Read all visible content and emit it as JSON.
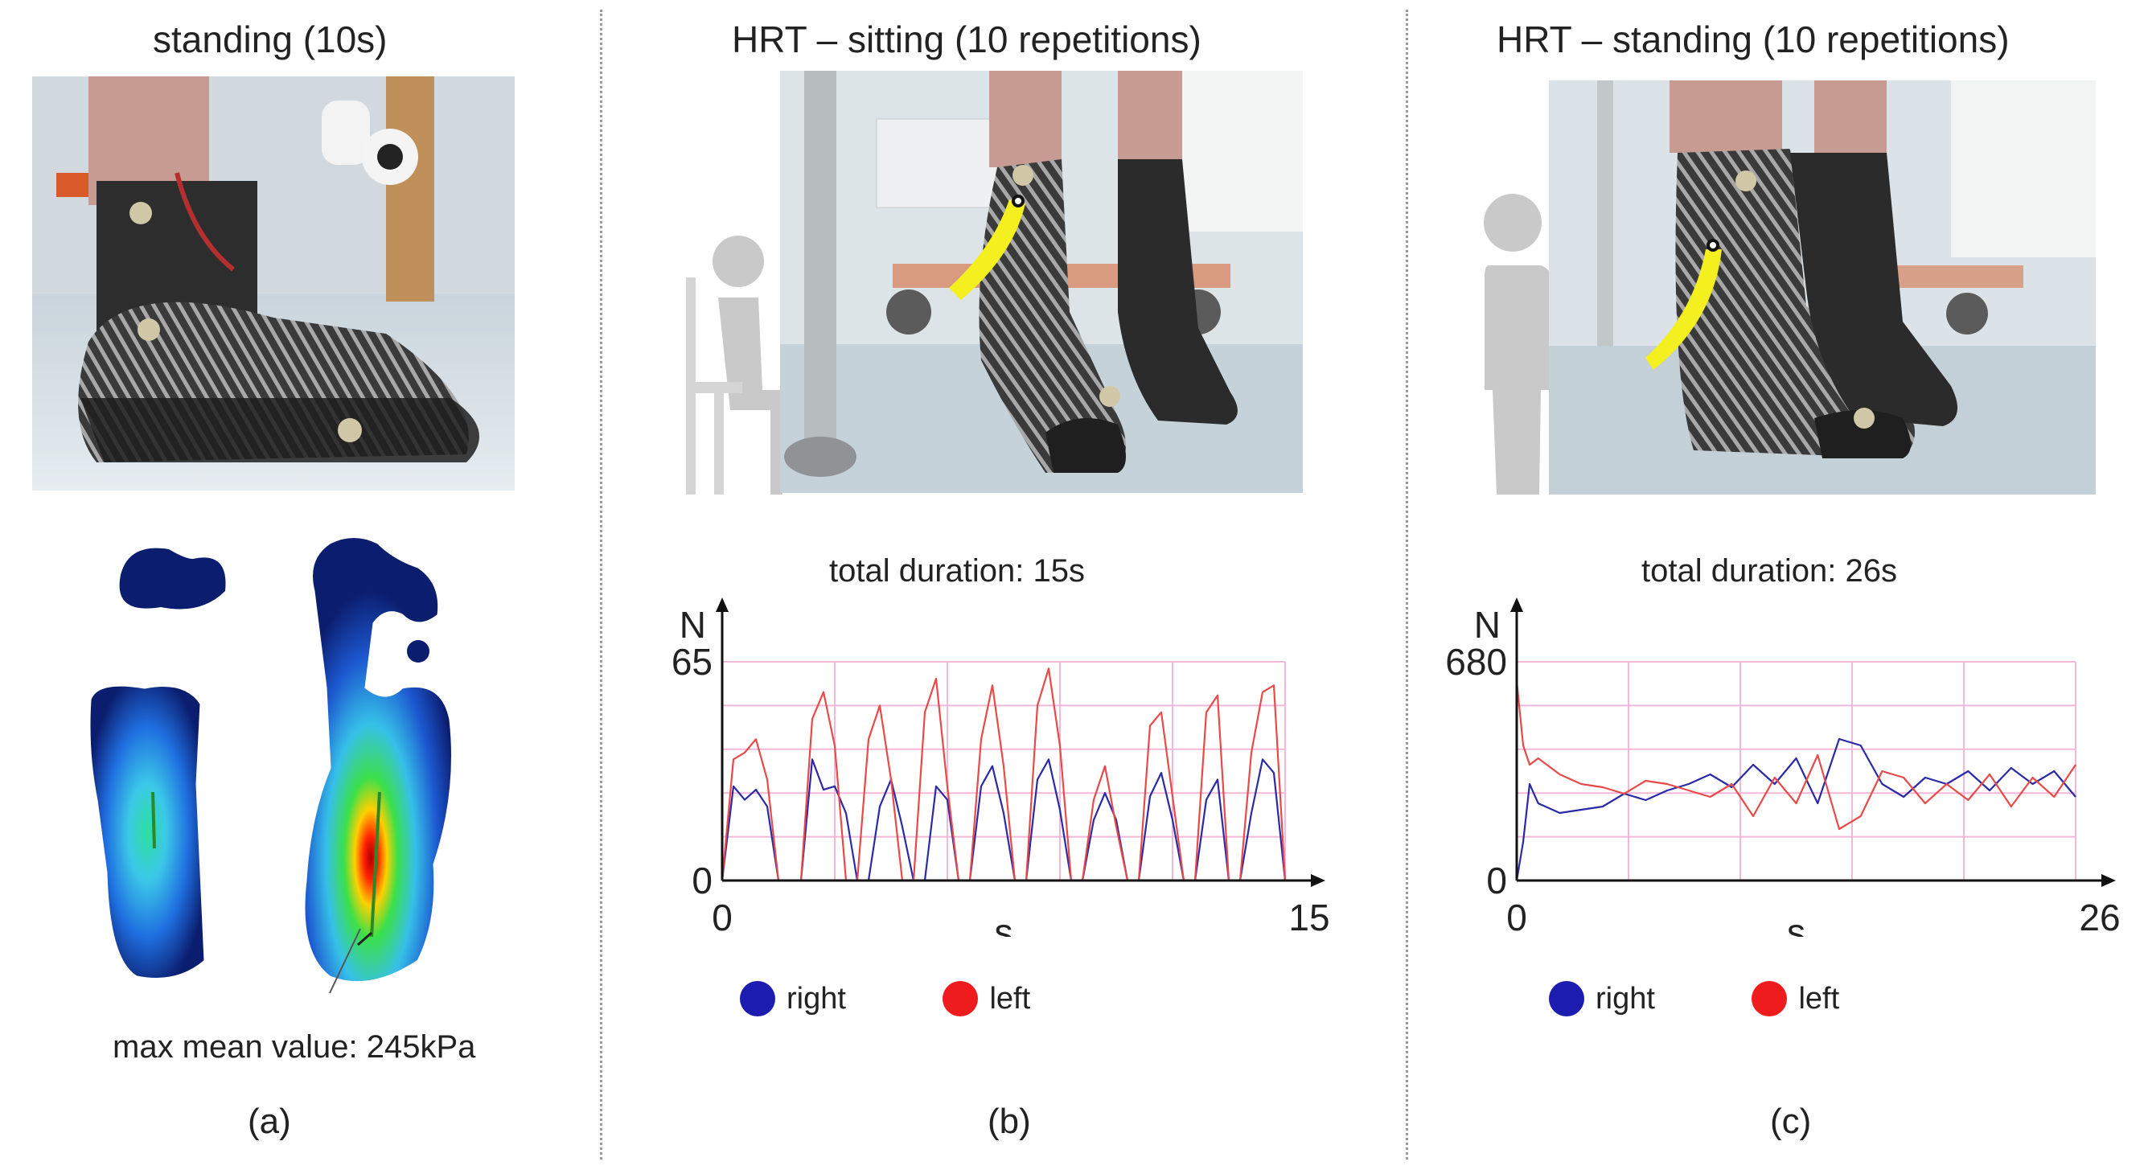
{
  "panel_a": {
    "title": "standing (10s)",
    "annotation": "max mean value: 245kPa",
    "caption": "(a)",
    "photo_icon": "foot-orthosis-photo",
    "heatmap_icon": "plantar-pressure-heatmap"
  },
  "panel_b": {
    "title": "HRT – sitting (10 repetitions)",
    "duration": "total duration: 15s",
    "caption": "(b)",
    "photo_icon": "heel-raise-sitting-photo",
    "person_icon": "sitting-person-icon"
  },
  "panel_c": {
    "title": "HRT – standing (10 repetitions)",
    "duration": "total duration: 26s",
    "caption": "(c)",
    "photo_icon": "heel-raise-standing-photo",
    "person_icon": "standing-person-icon"
  },
  "colors": {
    "right": "#2a2aa8",
    "left": "#e84a4a",
    "grid": "#f2b8d8",
    "legend_right": "#1c1cb0",
    "legend_left": "#ee1c1c"
  },
  "chart_data": [
    {
      "type": "line",
      "xlabel": "s",
      "ylabel": "N",
      "xlim": [
        0,
        15
      ],
      "ylim": [
        0,
        65
      ],
      "x_ticks": [
        "0",
        "15"
      ],
      "y_ticks": [
        "0",
        "65"
      ],
      "legend_position": "bottom",
      "series": [
        {
          "name": "right",
          "color": "#2a2aa8",
          "x": [
            0,
            0.3,
            0.6,
            0.9,
            1.2,
            1.5,
            1.8,
            2.1,
            2.4,
            2.7,
            3.0,
            3.3,
            3.6,
            3.9,
            4.2,
            4.5,
            4.8,
            5.1,
            5.4,
            5.7,
            6.0,
            6.3,
            6.6,
            6.9,
            7.2,
            7.5,
            7.8,
            8.1,
            8.4,
            8.7,
            9.0,
            9.3,
            9.6,
            9.9,
            10.2,
            10.5,
            10.8,
            11.1,
            11.4,
            11.7,
            12.0,
            12.3,
            12.6,
            12.9,
            13.2,
            13.5,
            13.8,
            14.1,
            14.4,
            14.7,
            15.0
          ],
          "y": [
            0,
            28,
            24,
            27,
            22,
            0,
            0,
            0,
            36,
            27,
            28,
            20,
            0,
            0,
            22,
            30,
            16,
            0,
            0,
            28,
            24,
            0,
            0,
            28,
            34,
            20,
            0,
            0,
            30,
            36,
            21,
            0,
            0,
            18,
            26,
            18,
            0,
            0,
            25,
            32,
            18,
            0,
            0,
            24,
            30,
            0,
            0,
            20,
            36,
            32,
            0
          ]
        },
        {
          "name": "left",
          "color": "#e84a4a",
          "x": [
            0,
            0.3,
            0.6,
            0.9,
            1.2,
            1.5,
            1.8,
            2.1,
            2.4,
            2.7,
            3.0,
            3.3,
            3.6,
            3.9,
            4.2,
            4.5,
            4.8,
            5.1,
            5.4,
            5.7,
            6.0,
            6.3,
            6.6,
            6.9,
            7.2,
            7.5,
            7.8,
            8.1,
            8.4,
            8.7,
            9.0,
            9.3,
            9.6,
            9.9,
            10.2,
            10.5,
            10.8,
            11.1,
            11.4,
            11.7,
            12.0,
            12.3,
            12.6,
            12.9,
            13.2,
            13.5,
            13.8,
            14.1,
            14.4,
            14.7,
            15.0
          ],
          "y": [
            0,
            36,
            38,
            42,
            30,
            0,
            0,
            0,
            48,
            56,
            40,
            0,
            0,
            42,
            52,
            30,
            0,
            0,
            50,
            60,
            28,
            0,
            0,
            42,
            58,
            34,
            0,
            0,
            52,
            63,
            40,
            0,
            0,
            24,
            34,
            16,
            0,
            0,
            46,
            50,
            25,
            0,
            0,
            50,
            55,
            0,
            0,
            38,
            56,
            58,
            0
          ]
        }
      ]
    },
    {
      "type": "line",
      "xlabel": "s",
      "ylabel": "N",
      "xlim": [
        0,
        26
      ],
      "ylim": [
        0,
        680
      ],
      "x_ticks": [
        "0",
        "26"
      ],
      "y_ticks": [
        "0",
        "680"
      ],
      "legend_position": "bottom",
      "series": [
        {
          "name": "right",
          "color": "#2a2aa8",
          "x": [
            0,
            0.3,
            0.6,
            1,
            2,
            3,
            4,
            5,
            6,
            7,
            8,
            9,
            10,
            11,
            12,
            13,
            14,
            15,
            16,
            17,
            18,
            19,
            20,
            21,
            22,
            23,
            24,
            25,
            26
          ],
          "y": [
            0,
            120,
            300,
            240,
            210,
            220,
            230,
            270,
            250,
            280,
            300,
            330,
            290,
            360,
            300,
            380,
            240,
            440,
            420,
            300,
            260,
            320,
            300,
            340,
            280,
            350,
            300,
            340,
            260
          ]
        },
        {
          "name": "left",
          "color": "#e84a4a",
          "x": [
            0,
            0.3,
            0.6,
            1,
            2,
            3,
            4,
            5,
            6,
            7,
            8,
            9,
            10,
            11,
            12,
            13,
            14,
            15,
            16,
            17,
            18,
            19,
            20,
            21,
            22,
            23,
            24,
            25,
            26
          ],
          "y": [
            620,
            420,
            360,
            380,
            330,
            300,
            290,
            270,
            310,
            300,
            280,
            260,
            300,
            200,
            320,
            240,
            390,
            160,
            200,
            340,
            320,
            240,
            300,
            250,
            330,
            230,
            320,
            260,
            360
          ]
        }
      ]
    }
  ]
}
